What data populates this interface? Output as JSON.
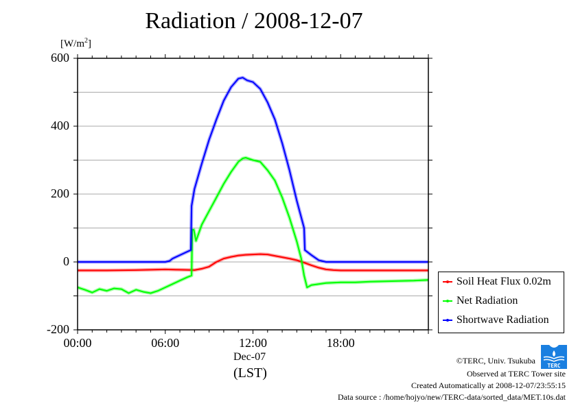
{
  "chart_data": {
    "type": "line",
    "title": "Radiation / 2008-12-07",
    "ylabel": "[W/m",
    "ylabel_sup": "2",
    "ylabel_end": "]",
    "xlabel_date": "Dec-07",
    "xlabel": "(LST)",
    "xlim": [
      0,
      24
    ],
    "ylim": [
      -200,
      600
    ],
    "x_unit": "hours",
    "grid": true,
    "x_ticks": [
      {
        "value": 0,
        "label": "00:00"
      },
      {
        "value": 6,
        "label": "06:00"
      },
      {
        "value": 12,
        "label": "12:00"
      },
      {
        "value": 18,
        "label": "18:00"
      }
    ],
    "y_ticks": [
      {
        "value": 600,
        "label": "600"
      },
      {
        "value": 400,
        "label": "400"
      },
      {
        "value": 200,
        "label": "200"
      },
      {
        "value": 0,
        "label": "0"
      },
      {
        "value": -200,
        "label": "-200"
      }
    ],
    "legend_position": "right-bottom",
    "series": [
      {
        "name": "Soil Heat Flux 0.02m",
        "color": "#ff0000",
        "x": [
          0,
          2,
          4,
          6,
          7,
          8,
          8.5,
          9,
          9.5,
          10,
          10.5,
          11,
          11.5,
          12,
          12.5,
          13,
          13.5,
          14,
          14.5,
          15,
          15.5,
          16,
          16.5,
          17,
          17.5,
          18,
          20,
          22,
          24
        ],
        "y": [
          -25,
          -25,
          -24,
          -22,
          -23,
          -24,
          -20,
          -14,
          0,
          10,
          15,
          19,
          21,
          22,
          23,
          22,
          18,
          14,
          10,
          5,
          -2,
          -10,
          -17,
          -22,
          -24,
          -25,
          -25,
          -25,
          -25
        ]
      },
      {
        "name": "Net Radiation",
        "color": "#00ff00",
        "x": [
          0,
          0.5,
          1,
          1.5,
          2,
          2.5,
          3,
          3.5,
          4,
          4.5,
          5,
          5.5,
          6,
          6.5,
          7,
          7.5,
          7.8,
          7.85,
          7.95,
          8.1,
          8.5,
          9,
          9.5,
          10,
          10.5,
          11,
          11.3,
          11.5,
          12,
          12.5,
          13,
          13.5,
          14,
          14.5,
          15,
          15.3,
          15.5,
          15.7,
          16,
          16.5,
          17,
          18,
          19,
          20,
          21,
          22,
          23,
          24
        ],
        "y": [
          -75,
          -82,
          -90,
          -80,
          -85,
          -78,
          -80,
          -92,
          -82,
          -88,
          -92,
          -85,
          -75,
          -65,
          -55,
          -45,
          -40,
          95,
          95,
          62,
          110,
          150,
          190,
          230,
          265,
          295,
          305,
          307,
          300,
          295,
          270,
          240,
          190,
          130,
          60,
          10,
          -40,
          -75,
          -68,
          -65,
          -62,
          -60,
          -60,
          -58,
          -57,
          -56,
          -55,
          -53
        ]
      },
      {
        "name": "Shortwave Radiation",
        "color": "#0000ff",
        "x": [
          0,
          2,
          4,
          6,
          6.3,
          6.5,
          7,
          7.5,
          7.75,
          7.8,
          8,
          8.5,
          9,
          9.5,
          10,
          10.5,
          11,
          11.3,
          11.6,
          12,
          12.5,
          13,
          13.5,
          14,
          14.5,
          15,
          15.5,
          15.55,
          16,
          16.5,
          17,
          18,
          20,
          22,
          24
        ],
        "y": [
          0,
          0,
          0,
          0,
          3,
          10,
          20,
          30,
          35,
          165,
          215,
          290,
          360,
          420,
          475,
          515,
          540,
          543,
          535,
          530,
          510,
          470,
          420,
          350,
          270,
          180,
          100,
          35,
          20,
          5,
          0,
          0,
          0,
          0,
          0
        ]
      }
    ]
  },
  "credits": {
    "copyright": "©TERC, Univ. Tsukuba",
    "site": "Observed at TERC Tower site",
    "created": "Created Automatically at 2008-12-07/23:55:15",
    "source": "Data source : /home/hojyo/new/TERC-data/sorted_data/MET.10s.dat",
    "logo_text": "TERC"
  }
}
